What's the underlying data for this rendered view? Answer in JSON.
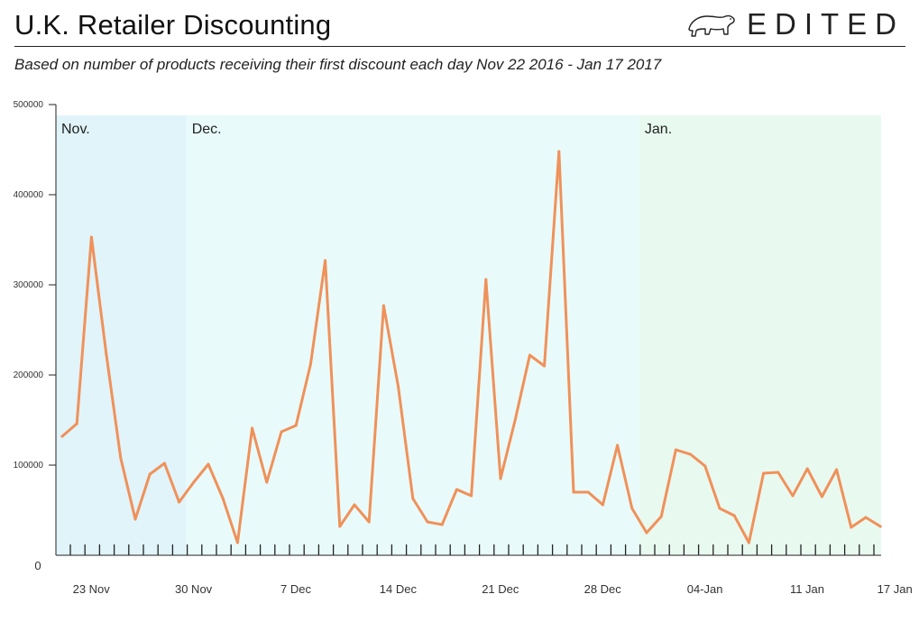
{
  "header": {
    "title": "U.K. Retailer Discounting",
    "brand": "EDITED",
    "subtitle": "Based on number of products receiving their first discount each day Nov 22 2016 - Jan 17 2017"
  },
  "colors": {
    "line": "#f0915a",
    "nov_band": "#e0f4fa",
    "dec_band": "#e8fbfa",
    "jan_band": "#e8f9f0",
    "axis": "#222222",
    "label": "#333333"
  },
  "chart_data": {
    "type": "line",
    "title": "U.K. Retailer Discounting",
    "subtitle": "Based on number of products receiving their first discount each day Nov 22 2016 - Jan 17 2017",
    "xlabel": "",
    "ylabel": "",
    "ylim": [
      0,
      500000
    ],
    "yticks": [
      0,
      100000,
      200000,
      300000,
      400000,
      500000
    ],
    "ytick_labels": [
      "0",
      "100000",
      "200000",
      "300000",
      "400000",
      "500000"
    ],
    "xtick_labels": [
      {
        "day": 1,
        "label": "23 Nov"
      },
      {
        "day": 8,
        "label": "30 Nov"
      },
      {
        "day": 15,
        "label": "7 Dec"
      },
      {
        "day": 22,
        "label": "14 Dec"
      },
      {
        "day": 29,
        "label": "21 Dec"
      },
      {
        "day": 36,
        "label": "28 Dec"
      },
      {
        "day": 43,
        "label": "04-Jan"
      },
      {
        "day": 50,
        "label": "11 Jan"
      },
      {
        "day": 56,
        "label": "17 Jan"
      }
    ],
    "month_bands": [
      {
        "label": "Nov.",
        "start": 0,
        "end": 8.5
      },
      {
        "label": "Dec.",
        "start": 8.5,
        "end": 39.5
      },
      {
        "label": "Jan.",
        "start": 39.5,
        "end": 56.5
      }
    ],
    "x_start_date": "2016-11-22",
    "grid": false,
    "legend": "none",
    "series": [
      {
        "values": [
          132000,
          146000,
          353000,
          225000,
          108000,
          40000,
          90000,
          102000,
          59000,
          81000,
          101000,
          63000,
          14000,
          141000,
          81000,
          137000,
          144000,
          212000,
          327000,
          32000,
          56000,
          37000,
          277000,
          187000,
          63000,
          37000,
          34000,
          73000,
          66000,
          306000,
          85000,
          150000,
          222000,
          210000,
          448000,
          70000,
          70000,
          56000,
          122000,
          52000,
          25000,
          43000,
          117000,
          112000,
          99000,
          52000,
          44000,
          14000,
          91000,
          92000,
          66000,
          96000,
          65000,
          95000,
          31000,
          42000,
          32000
        ]
      }
    ]
  }
}
